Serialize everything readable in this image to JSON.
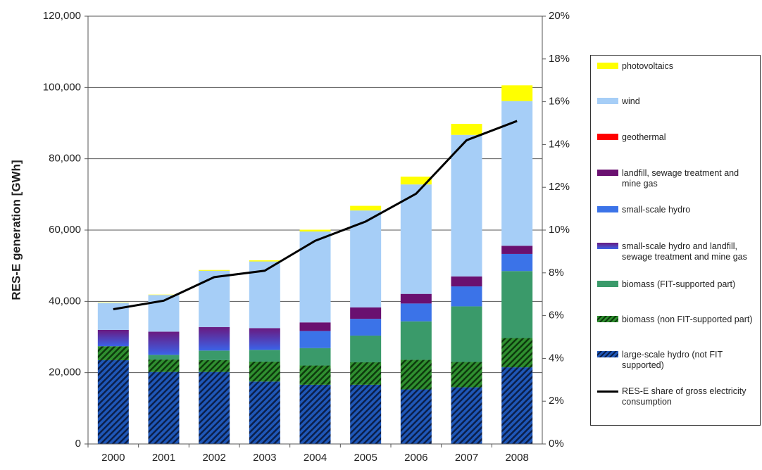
{
  "chart_data": {
    "type": "stacked-bar-line",
    "y_axis_label": "RES-E generation [GWh]",
    "categories": [
      "2000",
      "2001",
      "2002",
      "2003",
      "2004",
      "2005",
      "2006",
      "2007",
      "2008"
    ],
    "ylim": [
      0,
      120000
    ],
    "yticks": [
      0,
      {
        "value": 20000,
        "label": "20,000"
      },
      {
        "value": 40000,
        "label": "40,000"
      },
      {
        "value": 60000,
        "label": "60,000"
      },
      {
        "value": 80000,
        "label": "80,000"
      },
      {
        "value": 100000,
        "label": "100,000"
      },
      {
        "value": 120000,
        "label": "120,000"
      }
    ],
    "y2lim": [
      0,
      20
    ],
    "y2ticks": [
      {
        "value": 0,
        "label": "0%"
      },
      {
        "value": 2,
        "label": "2%"
      },
      {
        "value": 4,
        "label": "4%"
      },
      {
        "value": 6,
        "label": "6%"
      },
      {
        "value": 8,
        "label": "8%"
      },
      {
        "value": 10,
        "label": "10%"
      },
      {
        "value": 12,
        "label": "12%"
      },
      {
        "value": 14,
        "label": "14%"
      },
      {
        "value": 16,
        "label": "16%"
      },
      {
        "value": 18,
        "label": "18%"
      },
      {
        "value": 20,
        "label": "20%"
      }
    ],
    "grid": true,
    "legend": "right",
    "series": [
      {
        "name": "large-scale hydro (not FIT supported)",
        "color": "#1f57b8",
        "hatch_color": "#0b1f4a",
        "values": [
          23500,
          20200,
          20200,
          17500,
          16600,
          16600,
          15300,
          15900,
          21500
        ]
      },
      {
        "name": "biomass (non FIT-supported part)",
        "color": "#2f8f2f",
        "hatch_color": "#0d3a0d",
        "values": [
          3900,
          3500,
          3300,
          5600,
          5400,
          6300,
          8300,
          7100,
          8200
        ]
      },
      {
        "name": "biomass (FIT-supported part)",
        "color": "#3a9a6a",
        "values": [
          0,
          1300,
          2700,
          3300,
          4900,
          7500,
          10800,
          15600,
          18800
        ]
      },
      {
        "name": "small-scale hydro and landfill, sewage treatment and mine gas",
        "color": "#5a3aa8",
        "gradient": [
          "#3b62e8",
          "#6a1a80"
        ],
        "values": [
          4600,
          6500,
          6600,
          6100,
          0,
          0,
          0,
          0,
          0
        ]
      },
      {
        "name": "small-scale hydro",
        "color": "#3b73e8",
        "values": [
          0,
          0,
          0,
          0,
          4800,
          4700,
          5000,
          5600,
          4800
        ]
      },
      {
        "name": "landfill, sewage treatment and mine gas",
        "color": "#6a1070",
        "values": [
          0,
          0,
          0,
          0,
          2400,
          3200,
          2700,
          2800,
          2300
        ]
      },
      {
        "name": "geothermal",
        "color": "#ff0000",
        "values": [
          0,
          0,
          0,
          0,
          0,
          0,
          0,
          0,
          0
        ]
      },
      {
        "name": "wind",
        "color": "#a6cef7",
        "values": [
          7600,
          10300,
          15800,
          18700,
          25500,
          27200,
          30700,
          39700,
          40600
        ]
      },
      {
        "name": "photovoltaics",
        "color": "#ffff00",
        "values": [
          100,
          100,
          200,
          300,
          500,
          1300,
          2200,
          3100,
          4400
        ]
      },
      {
        "name": "RES-E share of gross electricity consumption",
        "color": "#000000",
        "axis": "y2",
        "values": [
          6.3,
          6.7,
          7.8,
          8.1,
          9.5,
          10.4,
          11.7,
          14.2,
          15.1
        ]
      }
    ]
  }
}
